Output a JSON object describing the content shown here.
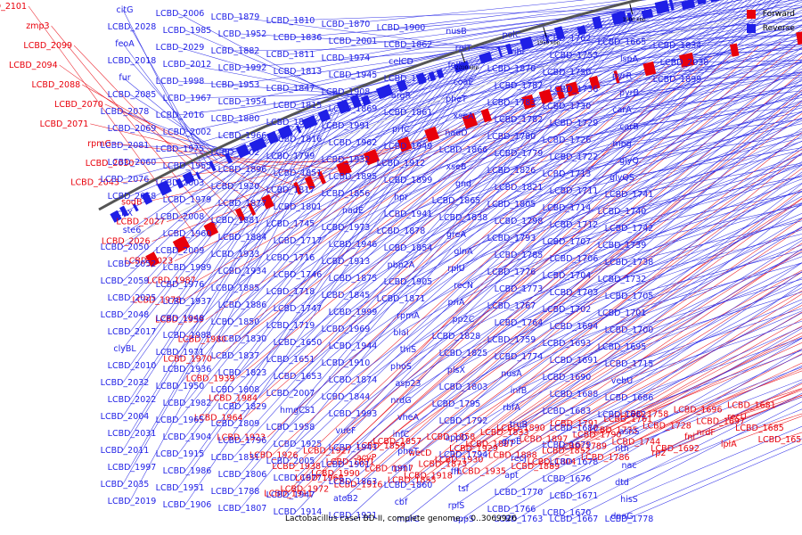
{
  "caption": "Lactobacillus casei BD-II, complete genome. - 0..3069926",
  "legend": {
    "forward": "Forward",
    "reverse": "Reverse"
  },
  "colors": {
    "forward": "#e8000b",
    "reverse": "#1f1fe6",
    "backbone": "#555555",
    "tick": "#000000"
  },
  "ticks": [
    "2000 kbp",
    "1950 kbp",
    "1900 kbp",
    "1850 kbp",
    "1800 kbp",
    "1750 kbp",
    "1700 kbp",
    "1650 kbp",
    "1600 kbp"
  ],
  "genes": {
    "forward": [
      "LCBD_2101",
      "zmp3",
      "LCBD_2099",
      "LCBD_2094",
      "LCBD_2088",
      "LCBD_2070",
      "LCBD_2071",
      "rpmG",
      "LCBD_2030",
      "LCBD_2043",
      "sodB",
      "LCBD_2027",
      "LCBD_2026",
      "LCBD_2023",
      "LCBD_1987",
      "LCBD_1978",
      "LCBD_1959",
      "LCBD_1980",
      "LCBD_1970",
      "LCBD_1939",
      "LCBD_1984",
      "LCBD_1964",
      "LCBD_1923",
      "LCBD_1911",
      "LCBD_1926",
      "LCBD_1938",
      "LCBD_1968",
      "LCBD_1972",
      "LCBD_1927",
      "LCBD_1891",
      "LCBD_1990",
      "LCBD_1916",
      "LCBD_1859",
      "acyP",
      "LCBD_1917",
      "LCBD_1855",
      "LCBD_1857",
      "wecD",
      "LCBD_1873",
      "LCBD_1918",
      "LCBD_1858",
      "LCBD_1929",
      "LCBD_1930",
      "LCBD_1935",
      "LCBD_1833",
      "LCBD_1887",
      "LCBD_1888",
      "LCBD_1889",
      "LCBD_1890",
      "LCBD_1897",
      "LCBD_1852",
      "LCBD_1804",
      "LCBD_1791",
      "LCBD_1790",
      "LCBD_1789",
      "LCBD_1786",
      "LCBD_1761",
      "LCBD_1735",
      "LCBD_1744",
      "rp2",
      "LCBD_1758",
      "LCBD_1728",
      "fni",
      "LCBD_1692",
      "LCBD_1696",
      "LCBD_1697",
      "nrdF",
      "lplA",
      "LCBD_1681",
      "recU",
      "LCBD_1685",
      "LCBD_1652"
    ],
    "reverse": [
      "citG",
      "LCBD_2028",
      "feoA",
      "LCBD_2018",
      "fur",
      "LCBD_2085",
      "LCBD_2078",
      "LCBD_2069",
      "LCBD_2081",
      "LCBD_2060",
      "LCBD_2076",
      "LCBD_2058",
      "citX",
      "ste6",
      "LCBD_2050",
      "LCBD_2052",
      "LCBD_2059",
      "LCBD_2025",
      "LCBD_2048",
      "LCBD_2017",
      "clyBL",
      "LCBD_2010",
      "LCBD_2032",
      "LCBD_2022",
      "LCBD_2004",
      "LCBD_2031",
      "LCBD_2011",
      "LCBD_1997",
      "LCBD_2035",
      "LCBD_2019",
      "LCBD_2006",
      "LCBD_1985",
      "LCBD_2029",
      "LCBD_2012",
      "LCBD_1998",
      "LCBD_1967",
      "LCBD_2016",
      "LCBD_2002",
      "LCBD_1975",
      "LCBD_1955",
      "LCBD_2003",
      "LCBD_1979",
      "LCBD_2008",
      "LCBD_1960",
      "LCBD_2009",
      "LCBD_1989",
      "LCBD_1976",
      "LCBD_1937",
      "LCBD_1948",
      "LCBD_1988",
      "LCBD_1971",
      "LCBD_1936",
      "LCBD_1950",
      "LCBD_1982",
      "LCBD_1965",
      "LCBD_1904",
      "LCBD_1915",
      "LCBD_1986",
      "LCBD_1951",
      "LCBD_1906",
      "LCBD_1879",
      "LCBD_1952",
      "LCBD_1882",
      "LCBD_1992",
      "LCBD_1953",
      "LCBD_1954",
      "LCBD_1880",
      "LCBD_1966",
      "LCBD_1902",
      "LCBD_1896",
      "LCBD_1920",
      "LCBD_1877",
      "LCBD_1881",
      "LCBD_1884",
      "LCBD_1933",
      "LCBD_1934",
      "LCBD_1885",
      "LCBD_1886",
      "LCBD_1850",
      "LCBD_1830",
      "LCBD_1837",
      "LCBD_1823",
      "LCBD_1808",
      "LCBD_1829",
      "LCBD_1809",
      "LCBD_1796",
      "LCBD_1831",
      "LCBD_1806",
      "LCBD_1788",
      "LCBD_1807",
      "LCBD_1810",
      "LCBD_1836",
      "LCBD_1811",
      "LCBD_1813",
      "LCBD_1847",
      "LCBD_1815",
      "LCBD_1849",
      "LCBD_1816",
      "LCBD_1799",
      "LCBD_1851",
      "LCBD_1817",
      "LCBD_1801",
      "LCBD_1745",
      "LCBD_1717",
      "LCBD_1716",
      "LCBD_1746",
      "LCBD_1718",
      "LCBD_1747",
      "LCBD_1719",
      "LCBD_1650",
      "LCBD_1651",
      "LCBD_1653",
      "LCBD_2007",
      "hmgCS1",
      "LCBD_1958",
      "LCBD_1925",
      "LCBD_2005",
      "LCBD_1977",
      "LCBD_1947",
      "LCBD_1914",
      "LCBD_1870",
      "LCBD_2001",
      "LCBD_1974",
      "LCBD_1945",
      "LCBD_1908",
      "LCBD_1869",
      "LCBD_1991",
      "LCBD_1962",
      "LCBD_1932",
      "LCBD_1895",
      "LCBD_1856",
      "nadE",
      "LCBD_1973",
      "LCBD_1946",
      "LCBD_1913",
      "LCBD_1875",
      "LCBD_1845",
      "LCBD_1999",
      "LCBD_1969",
      "LCBD_1944",
      "LCBD_1910",
      "LCBD_1874",
      "LCBD_1844",
      "LCBD_1993",
      "vueF",
      "LCBD_1943",
      "LCBD_1901",
      "LCBD_1863",
      "atoB2",
      "LCBD_1921",
      "LCBD_1900",
      "LCBD_1862",
      "celCD",
      "LCBD_1956",
      "argR",
      "LCBD_1861",
      "prfC",
      "LCBD_1949",
      "LCBD_1912",
      "LCBD_1899",
      "hpr",
      "LCBD_1941",
      "LCBD_1878",
      "LCBD_1854",
      "pbp2A",
      "LCBD_1905",
      "LCBD_1871",
      "rpmA",
      "blaI",
      "thiS",
      "phoS",
      "asp23",
      "nrdG",
      "vheA",
      "infC",
      "pheT",
      "rpmI",
      "LCBD_1860",
      "cbf",
      "murC",
      "nusB",
      "rplT",
      "folD",
      "coaE",
      "pheT",
      "xseA",
      "nadD",
      "LCBD_1866",
      "xseB",
      "gnd",
      "LCBD_1865",
      "LCBD_1838",
      "greA",
      "glnA",
      "rplU",
      "recN",
      "priA",
      "pp2C",
      "LCBD_1828",
      "LCBD_1825",
      "plsX",
      "LCBD_1803",
      "LCBD_1795",
      "LCBD_1792",
      "appD",
      "LCBD_1794",
      "ffh",
      "tsf",
      "rplS",
      "uppS",
      "polC",
      "ribF",
      "LCBD_1870",
      "LCBD_1787",
      "LCBD_1783",
      "LCBD_1782",
      "LCBD_1780",
      "LCBD_1779",
      "LCBD_1826",
      "LCBD_1821",
      "LCBD_1805",
      "LCBD_1798",
      "LCBD_1793",
      "LCBD_1785",
      "LCBD_1776",
      "LCBD_1773",
      "LCBD_1767",
      "LCBD_1764",
      "LCBD_1759",
      "LCBD_1774",
      "nusA",
      "infB",
      "rbfA",
      "truB",
      "grpE",
      "recJ",
      "apt",
      "LCBD_1770",
      "LCBD_1766",
      "LCBD_1763",
      "LCBD_1762",
      "LCBD_1753",
      "LCBD_1750",
      "LCBD_1736",
      "LCBD_1730",
      "LCBD_1729",
      "LCBD_1726",
      "LCBD_1722",
      "LCBD_1713",
      "LCBD_1711",
      "LCBD_1714",
      "LCBD_1712",
      "LCBD_1707",
      "LCBD_1706",
      "LCBD_1704",
      "LCBD_1703",
      "LCBD_1702",
      "LCBD_1694",
      "LCBD_1693",
      "LCBD_1691",
      "LCBD_1690",
      "LCBD_1688",
      "LCBD_1683",
      "LCBD_1680",
      "LCBD_1679",
      "LCBD_1678",
      "LCBD_1676",
      "LCBD_1671",
      "LCBD_1670",
      "LCBD_1667",
      "LCBD_1665",
      "lspA",
      "pyrR",
      "pyrB",
      "carA",
      "carB",
      "mpg",
      "glyQ",
      "glyQS",
      "LCBD_1741",
      "LCBD_1740",
      "LCBD_1742",
      "LCBD_1739",
      "LCBD_1738",
      "LCBD_1732",
      "LCBD_1705",
      "LCBD_1701",
      "LCBD_1700",
      "LCBD_1695",
      "LCBD_1715",
      "vebU",
      "LCBD_1686",
      "LCBD_1682",
      "asnS",
      "nth",
      "nac",
      "dtd",
      "hisS",
      "dnaG",
      "LCBD_1778",
      "LCBD_1834",
      "LCBD_2038",
      "LCBD_1899"
    ]
  }
}
